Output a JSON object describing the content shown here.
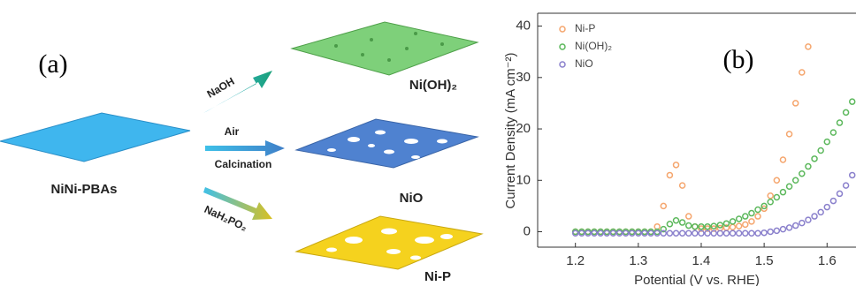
{
  "panel_a": {
    "label": "(a)",
    "source": "NiNi-PBAs",
    "products": [
      "Ni(OH)₂",
      "NiO",
      "Ni-P"
    ],
    "reagents": [
      "NaOH",
      "Air",
      "Calcination",
      "NaH₂PO₂"
    ]
  },
  "chart_data": {
    "type": "scatter",
    "panel_label": "(b)",
    "x_label": "Potential (V vs. RHE)",
    "y_label": "Current Density (mA cm⁻²)",
    "x": [
      1.2,
      1.21,
      1.22,
      1.23,
      1.24,
      1.25,
      1.26,
      1.27,
      1.28,
      1.29,
      1.3,
      1.31,
      1.32,
      1.33,
      1.34,
      1.35,
      1.36,
      1.37,
      1.38,
      1.39,
      1.4,
      1.41,
      1.42,
      1.43,
      1.44,
      1.45,
      1.46,
      1.47,
      1.48,
      1.49,
      1.5,
      1.51,
      1.52,
      1.53,
      1.54,
      1.55,
      1.56,
      1.57,
      1.58,
      1.59,
      1.6,
      1.61,
      1.62,
      1.63,
      1.64
    ],
    "series": [
      {
        "name": "Ni-P",
        "color": "#f5a66e",
        "values": [
          0,
          0,
          0,
          0,
          0,
          0,
          0,
          0,
          0,
          0,
          0,
          0,
          0,
          1,
          5,
          11,
          13,
          9,
          3,
          1,
          0.6,
          0.6,
          0.6,
          0.7,
          0.8,
          0.9,
          1.1,
          1.4,
          2,
          3,
          4.5,
          7,
          10,
          14,
          19,
          25,
          31,
          36,
          null,
          null,
          null,
          null,
          null,
          null,
          null
        ]
      },
      {
        "name": "Ni(OH)₂",
        "color": "#5cb85c",
        "values": [
          0,
          0,
          0,
          0,
          0,
          0,
          0,
          0,
          0,
          0,
          0,
          0,
          0,
          0,
          0.5,
          1.5,
          2.2,
          1.8,
          1.2,
          1,
          1,
          1,
          1.1,
          1.3,
          1.6,
          2,
          2.5,
          3,
          3.6,
          4.3,
          5,
          5.8,
          6.7,
          7.7,
          8.8,
          10,
          11.3,
          12.7,
          14.2,
          15.8,
          17.5,
          19.3,
          21.2,
          23.2,
          25.3
        ]
      },
      {
        "name": "NiO",
        "color": "#8a80cc",
        "values": [
          -0.3,
          -0.3,
          -0.3,
          -0.3,
          -0.3,
          -0.3,
          -0.3,
          -0.3,
          -0.3,
          -0.3,
          -0.3,
          -0.3,
          -0.3,
          -0.3,
          -0.3,
          -0.3,
          -0.3,
          -0.3,
          -0.3,
          -0.3,
          -0.3,
          -0.3,
          -0.3,
          -0.3,
          -0.3,
          -0.3,
          -0.3,
          -0.3,
          -0.3,
          -0.3,
          -0.2,
          0,
          0.2,
          0.5,
          0.8,
          1.2,
          1.7,
          2.3,
          3,
          3.8,
          4.8,
          6,
          7.4,
          9,
          11
        ]
      }
    ],
    "xlim": [
      1.14,
      1.646
    ],
    "ylim": [
      -3,
      42.5
    ],
    "xticks": [
      1.2,
      1.3,
      1.4,
      1.5,
      1.6
    ],
    "yticks": [
      0,
      10,
      20,
      30,
      40
    ],
    "legend": "upper left"
  }
}
